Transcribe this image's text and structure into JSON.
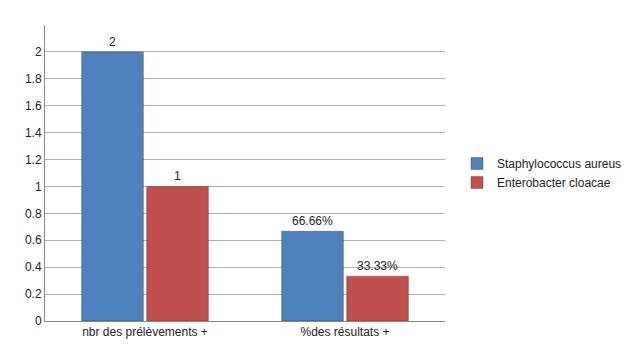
{
  "chart_data": {
    "type": "bar",
    "categories": [
      "nbr des prélèvements +",
      "%des résultats +"
    ],
    "series": [
      {
        "name": "Staphylococcus aureus",
        "color": "#4f81bd",
        "values": [
          2,
          0.6666
        ],
        "value_labels": [
          "2",
          "66.66%"
        ]
      },
      {
        "name": "Enterobacter cloacae",
        "color": "#c0504d",
        "values": [
          1,
          0.3333
        ],
        "value_labels": [
          "1",
          "33.33%"
        ]
      }
    ],
    "ylim": [
      0,
      2.2
    ],
    "yticks": [
      0,
      0.2,
      0.4,
      0.6,
      0.8,
      1,
      1.2,
      1.4,
      1.6,
      1.8,
      2
    ],
    "grid": true,
    "legend": "right",
    "data_labels": true
  }
}
